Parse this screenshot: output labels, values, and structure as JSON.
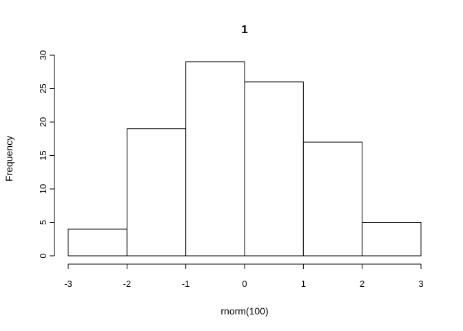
{
  "chart_data": {
    "type": "bar",
    "title": "1",
    "xlabel": "rnorm(100)",
    "ylabel": "Frequency",
    "bins": [
      {
        "from": -3,
        "to": -2,
        "count": 4
      },
      {
        "from": -2,
        "to": -1,
        "count": 19
      },
      {
        "from": -1,
        "to": 0,
        "count": 29
      },
      {
        "from": 0,
        "to": 1,
        "count": 26
      },
      {
        "from": 1,
        "to": 2,
        "count": 17
      },
      {
        "from": 2,
        "to": 3,
        "count": 5
      }
    ],
    "xlim": [
      -3,
      3
    ],
    "ylim": [
      0,
      30
    ],
    "x_ticks": [
      -3,
      -2,
      -1,
      0,
      1,
      2,
      3
    ],
    "x_tick_labels": [
      "-3",
      "-2",
      "-1",
      "0",
      "1",
      "2",
      "3"
    ],
    "y_ticks": [
      0,
      5,
      10,
      15,
      20,
      25,
      30
    ],
    "y_tick_labels": [
      "0",
      "5",
      "10",
      "15",
      "20",
      "25",
      "30"
    ],
    "grid": false,
    "colors": {
      "bar_fill": "#ffffff",
      "bar_stroke": "#000000"
    }
  }
}
